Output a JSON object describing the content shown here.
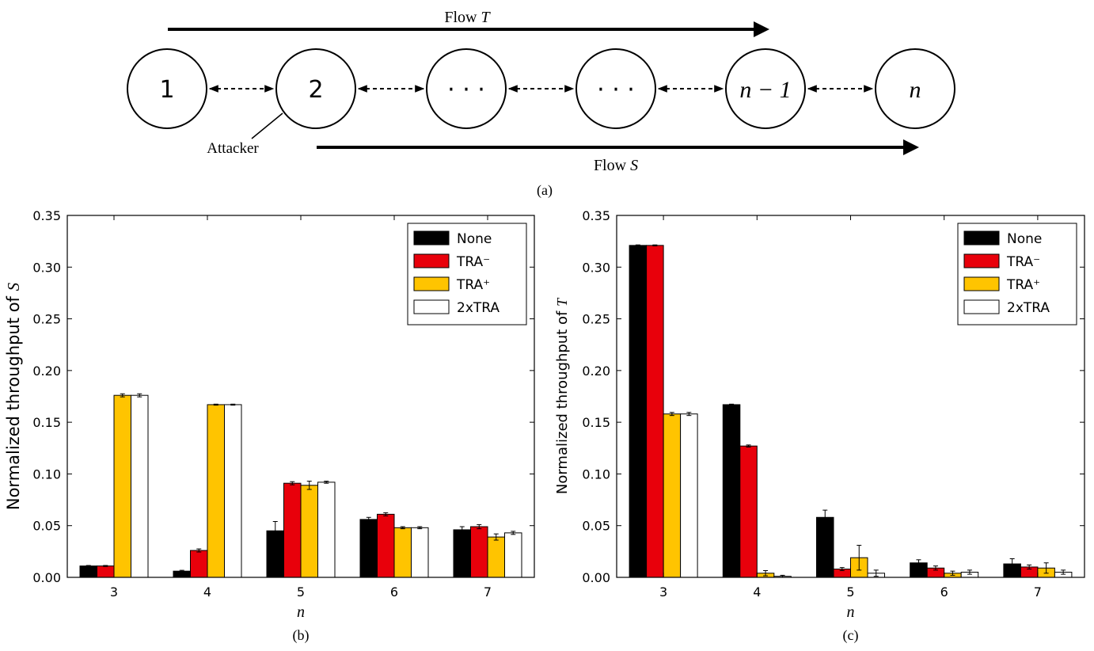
{
  "diagram": {
    "caption": "(a)",
    "nodes": [
      {
        "label": "1"
      },
      {
        "label": "2"
      },
      {
        "label": "· · ·"
      },
      {
        "label": "· · ·"
      },
      {
        "label": "n − 1"
      },
      {
        "label": "n"
      }
    ],
    "flow_t_label": "Flow T",
    "flow_s_label": "Flow S",
    "attacker_label": "Attacker"
  },
  "colors": {
    "None": "#000000",
    "TRA-": "#e8000b",
    "TRA+": "#ffc400",
    "2xTRA": "#ffffff"
  },
  "chart_data": [
    {
      "type": "bar",
      "caption": "(b)",
      "xlabel": "n",
      "ylabel": "Normalized throughput of S",
      "categories": [
        "3",
        "4",
        "5",
        "6",
        "7"
      ],
      "ylim": [
        0,
        0.35
      ],
      "yticks": [
        "0.00",
        "0.05",
        "0.10",
        "0.15",
        "0.20",
        "0.25",
        "0.30",
        "0.35"
      ],
      "legend_position": "top-right",
      "series": [
        {
          "name": "None",
          "values": [
            0.011,
            0.006,
            0.045,
            0.056,
            0.046
          ],
          "errors": [
            0.0005,
            0.0008,
            0.009,
            0.002,
            0.003
          ]
        },
        {
          "name": "TRA⁻",
          "values": [
            0.011,
            0.026,
            0.091,
            0.061,
            0.049
          ],
          "errors": [
            0.0005,
            0.0015,
            0.0015,
            0.0015,
            0.002
          ]
        },
        {
          "name": "TRA⁺",
          "values": [
            0.176,
            0.167,
            0.089,
            0.048,
            0.039
          ],
          "errors": [
            0.0015,
            0.0005,
            0.004,
            0.001,
            0.003
          ]
        },
        {
          "name": "2xTRA",
          "values": [
            0.176,
            0.167,
            0.092,
            0.048,
            0.043
          ],
          "errors": [
            0.0015,
            0.0005,
            0.001,
            0.001,
            0.0015
          ]
        }
      ]
    },
    {
      "type": "bar",
      "caption": "(c)",
      "xlabel": "n",
      "ylabel": "Normalized throughput of T",
      "categories": [
        "3",
        "4",
        "5",
        "6",
        "7"
      ],
      "ylim": [
        0,
        0.35
      ],
      "yticks": [
        "0.00",
        "0.05",
        "0.10",
        "0.15",
        "0.20",
        "0.25",
        "0.30",
        "0.35"
      ],
      "legend_position": "top-right",
      "series": [
        {
          "name": "None",
          "values": [
            0.321,
            0.167,
            0.058,
            0.014,
            0.013
          ],
          "errors": [
            0.0005,
            0.0005,
            0.007,
            0.003,
            0.005
          ]
        },
        {
          "name": "TRA⁻",
          "values": [
            0.321,
            0.127,
            0.008,
            0.009,
            0.01
          ],
          "errors": [
            0.0005,
            0.001,
            0.0015,
            0.002,
            0.002
          ]
        },
        {
          "name": "TRA⁺",
          "values": [
            0.158,
            0.004,
            0.019,
            0.004,
            0.009
          ],
          "errors": [
            0.0015,
            0.0025,
            0.012,
            0.002,
            0.005
          ]
        },
        {
          "name": "2xTRA",
          "values": [
            0.158,
            0.001,
            0.004,
            0.005,
            0.005
          ],
          "errors": [
            0.0015,
            0.001,
            0.003,
            0.002,
            0.002
          ]
        }
      ]
    }
  ]
}
